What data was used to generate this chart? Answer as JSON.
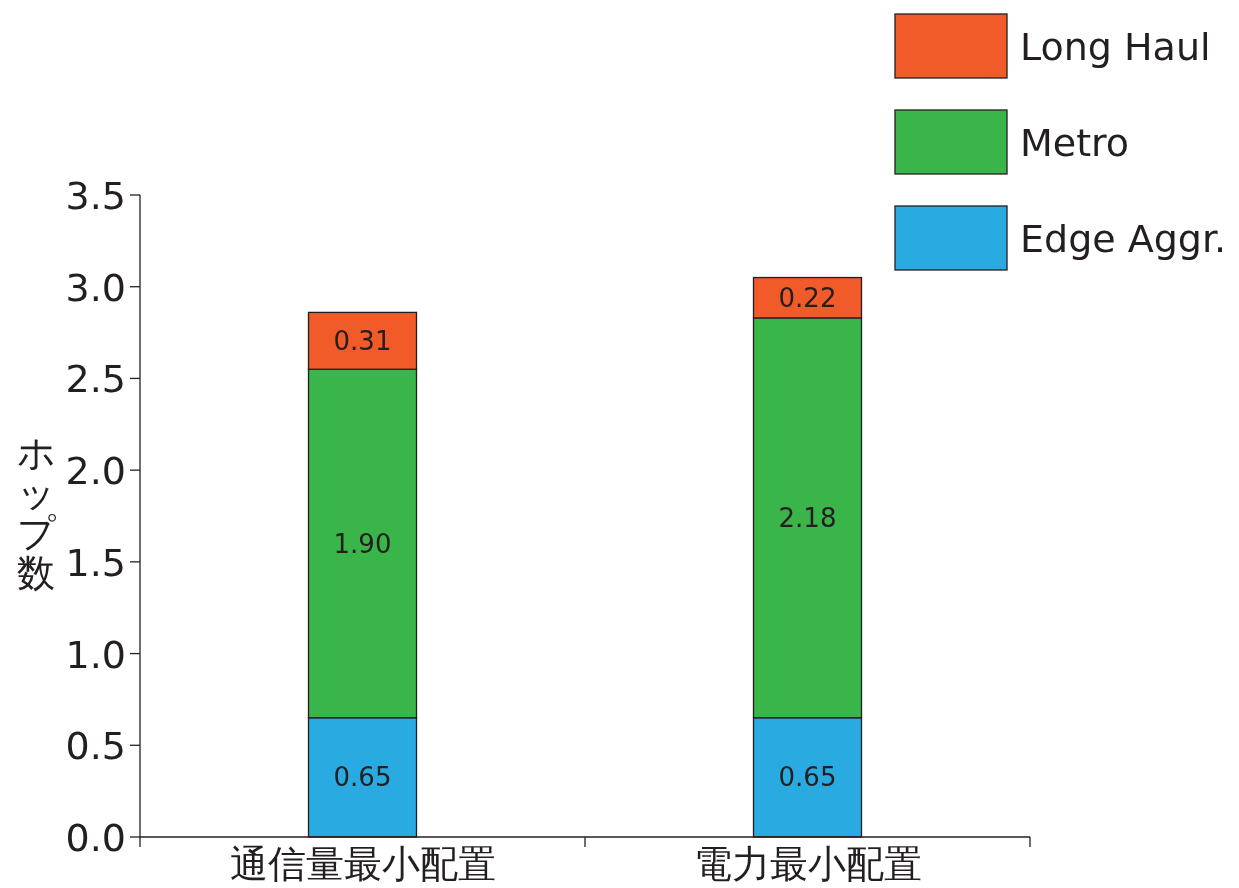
{
  "chart_data": {
    "type": "bar",
    "stacked": true,
    "legend": "top right",
    "ylabel": "ホップ数",
    "categories": [
      "通信量最小配置",
      "電力最小配置"
    ],
    "series": [
      {
        "name": "Edge Aggr.",
        "color": "#29abe2",
        "values": [
          0.65,
          0.65
        ],
        "value_labels": [
          "0.65",
          "0.65"
        ]
      },
      {
        "name": "Metro",
        "color": "#39b54a",
        "values": [
          1.9,
          2.18
        ],
        "value_labels": [
          "1.90",
          "2.18"
        ]
      },
      {
        "name": "Long Haul",
        "color": "#f15a29",
        "values": [
          0.31,
          0.22
        ],
        "value_labels": [
          "0.31",
          "0.22"
        ]
      }
    ],
    "ylim": [
      0,
      3.5
    ],
    "yticks": [
      {
        "value": 0,
        "label": "0.0"
      },
      {
        "value": 0.5,
        "label": "0.5"
      },
      {
        "value": 1,
        "label": "1.0"
      },
      {
        "value": 1.5,
        "label": "1.5"
      },
      {
        "value": 2,
        "label": "2.0"
      },
      {
        "value": 2.5,
        "label": "2.5"
      },
      {
        "value": 3,
        "label": "3.0"
      },
      {
        "value": 3.5,
        "label": "3.5"
      }
    ]
  }
}
